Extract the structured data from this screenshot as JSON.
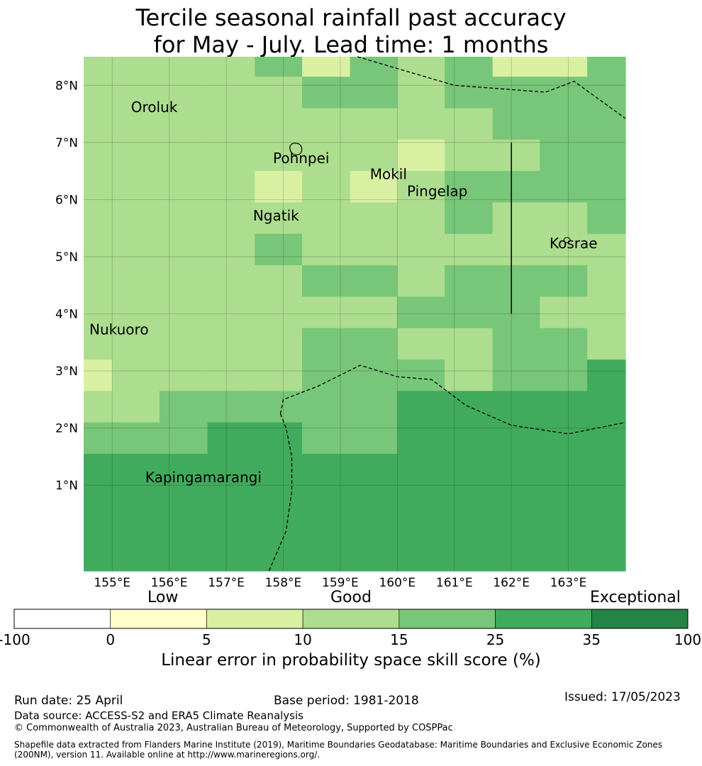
{
  "title": {
    "line1": "Tercile seasonal rainfall past accuracy",
    "line2": "for May - July. Lead time: 1 months"
  },
  "map": {
    "lon_range": [
      154.5,
      164.0
    ],
    "lat_range": [
      -0.5,
      8.5
    ],
    "lon_ticks": [
      155,
      156,
      157,
      158,
      159,
      160,
      161,
      162,
      163
    ],
    "lon_tick_labels": [
      "155°E",
      "156°E",
      "157°E",
      "158°E",
      "159°E",
      "160°E",
      "161°E",
      "162°E",
      "163°E"
    ],
    "lat_ticks": [
      1,
      2,
      3,
      4,
      5,
      6,
      7,
      8
    ],
    "lat_tick_labels": [
      "1°N",
      "2°N",
      "3°N",
      "4°N",
      "5°N",
      "6°N",
      "7°N",
      "8°N"
    ],
    "grid": true,
    "cell_lon_edges": [
      154.5,
      155.0,
      155.83,
      156.67,
      157.5,
      158.33,
      159.17,
      160.0,
      160.83,
      161.67,
      162.5,
      163.33,
      164.0
    ],
    "cell_lat_edges": [
      8.5,
      8.15,
      7.6,
      7.05,
      6.5,
      5.95,
      5.4,
      4.85,
      4.3,
      3.75,
      3.2,
      2.65,
      2.1,
      1.55,
      -0.5
    ],
    "cells": [
      [
        3,
        3,
        3,
        3,
        4,
        2,
        4,
        3,
        4,
        2,
        2,
        4
      ],
      [
        3,
        3,
        3,
        3,
        3,
        4,
        4,
        3,
        4,
        4,
        4,
        4
      ],
      [
        3,
        3,
        3,
        3,
        3,
        3,
        3,
        3,
        3,
        4,
        4,
        4
      ],
      [
        3,
        3,
        3,
        3,
        3,
        3,
        3,
        2,
        3,
        3,
        4,
        4
      ],
      [
        3,
        3,
        3,
        3,
        2,
        3,
        2,
        3,
        4,
        4,
        4,
        4
      ],
      [
        3,
        3,
        3,
        3,
        3,
        3,
        3,
        3,
        4,
        3,
        3,
        4
      ],
      [
        3,
        3,
        3,
        3,
        4,
        3,
        3,
        3,
        3,
        3,
        3,
        3
      ],
      [
        3,
        3,
        3,
        3,
        3,
        4,
        4,
        3,
        4,
        4,
        4,
        3
      ],
      [
        3,
        3,
        3,
        3,
        3,
        3,
        3,
        4,
        4,
        4,
        3,
        3
      ],
      [
        3,
        3,
        3,
        3,
        3,
        4,
        4,
        3,
        3,
        4,
        4,
        3
      ],
      [
        2,
        3,
        3,
        3,
        3,
        4,
        4,
        4,
        3,
        4,
        4,
        5
      ],
      [
        3,
        3,
        4,
        4,
        4,
        4,
        4,
        5,
        5,
        5,
        5,
        5
      ],
      [
        4,
        4,
        4,
        5,
        5,
        4,
        4,
        5,
        5,
        5,
        5,
        5
      ],
      [
        5,
        5,
        5,
        5,
        5,
        5,
        5,
        5,
        5,
        5,
        5,
        5
      ]
    ],
    "eez_boundaries": [
      [
        [
          159.3,
          8.5
        ],
        [
          161.0,
          8.0
        ],
        [
          162.6,
          7.88
        ],
        [
          163.1,
          8.07
        ],
        [
          164.0,
          7.42
        ]
      ],
      [
        [
          157.95,
          2.25
        ],
        [
          158.0,
          2.5
        ],
        [
          158.6,
          2.73
        ],
        [
          159.35,
          3.1
        ],
        [
          160.0,
          2.9
        ],
        [
          160.6,
          2.85
        ],
        [
          161.2,
          2.4
        ],
        [
          162.0,
          2.05
        ],
        [
          163.0,
          1.9
        ],
        [
          164.0,
          2.1
        ]
      ],
      [
        [
          157.95,
          2.25
        ],
        [
          158.05,
          2.0
        ],
        [
          158.15,
          1.5
        ],
        [
          158.15,
          0.9
        ],
        [
          158.05,
          0.2
        ],
        [
          157.75,
          -0.5
        ]
      ]
    ],
    "boundary_line": [
      [
        162.0,
        7.0
      ],
      [
        162.0,
        4.0
      ]
    ],
    "islands": [
      {
        "name": "Oroluk",
        "lon": 155.33,
        "lat": 7.53
      },
      {
        "name": "Pohnpei",
        "lon": 157.82,
        "lat": 6.64
      },
      {
        "name": "Mokil",
        "lon": 159.52,
        "lat": 6.36
      },
      {
        "name": "Pingelap",
        "lon": 160.17,
        "lat": 6.06
      },
      {
        "name": "Ngatik",
        "lon": 157.47,
        "lat": 5.63
      },
      {
        "name": "Kosrae",
        "lon": 162.67,
        "lat": 5.15
      },
      {
        "name": "Nukuoro",
        "lon": 154.6,
        "lat": 3.64
      },
      {
        "name": "Kapingamarangi",
        "lon": 155.58,
        "lat": 1.05
      }
    ]
  },
  "colorbar": {
    "boundaries": [
      -100,
      0,
      5,
      10,
      15,
      25,
      35,
      100
    ],
    "tick_labels": [
      "-100",
      "0",
      "5",
      "10",
      "15",
      "25",
      "35",
      "100"
    ],
    "colors": [
      "#ffffff",
      "#ffffcc",
      "#d9f0a3",
      "#addd8e",
      "#78c679",
      "#41ab5d",
      "#238443"
    ],
    "category_low": "Low",
    "category_good": "Good",
    "category_exceptional": "Exceptional",
    "label": "Linear error in probability space skill score (%)"
  },
  "footer": {
    "run_date": "Run date: 25 April",
    "base_period": "Base period: 1981-2018",
    "issued": "Issued: 17/05/2023",
    "data_source": "Data source: ACCESS-S2 and ERA5 Climate Reanalysis",
    "copyright": "© Commonwealth of Australia 2023, Australian Bureau of Meteorology, Supported by COSPPac",
    "shapefile_line1": "Shapefile data extracted from Flanders Marine Institute (2019), Maritime Boundaries Geodatabase: Maritime Boundaries and Exclusive Economic Zones",
    "shapefile_line2": "(200NM), version 11. Available online at http://www.marineregions.org/."
  }
}
